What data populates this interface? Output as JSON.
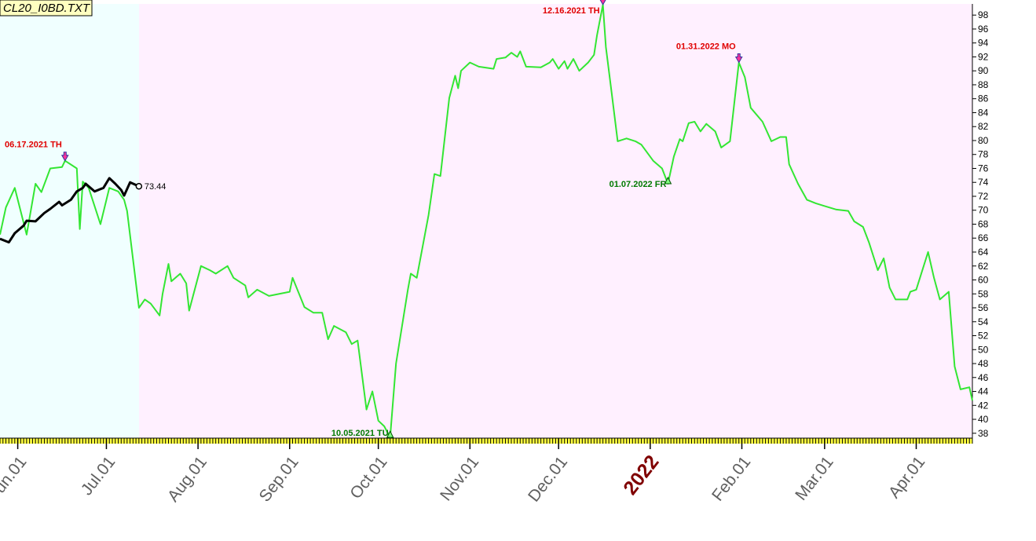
{
  "chart_data": {
    "type": "line",
    "title": "CL20_I0BD.TXT",
    "series": [
      {
        "color": "#33e633",
        "x": [
          "2021-05-26",
          "2021-05-28",
          "2021-05-31",
          "2021-06-04",
          "2021-06-07",
          "2021-06-09",
          "2021-06-12",
          "2021-06-16",
          "2021-06-17",
          "2021-06-21",
          "2021-06-22",
          "2021-06-23",
          "2021-06-25",
          "2021-06-29",
          "2021-07-02",
          "2021-07-05",
          "2021-07-07",
          "2021-07-08",
          "2021-07-12",
          "2021-07-14",
          "2021-07-16",
          "2021-07-19",
          "2021-07-20",
          "2021-07-22",
          "2021-07-23",
          "2021-07-26",
          "2021-07-28",
          "2021-07-29",
          "2021-08-02",
          "2021-08-05",
          "2021-08-07",
          "2021-08-11",
          "2021-08-13",
          "2021-08-17",
          "2021-08-18",
          "2021-08-21",
          "2021-08-25",
          "2021-09-01",
          "2021-09-02",
          "2021-09-06",
          "2021-09-09",
          "2021-09-12",
          "2021-09-14",
          "2021-09-16",
          "2021-09-20",
          "2021-09-22",
          "2021-09-24",
          "2021-09-27",
          "2021-09-29",
          "2021-10-01",
          "2021-10-03",
          "2021-10-05",
          "2021-10-07",
          "2021-10-11",
          "2021-10-12",
          "2021-10-14",
          "2021-10-16",
          "2021-10-18",
          "2021-10-20",
          "2021-10-22",
          "2021-10-25",
          "2021-10-27",
          "2021-10-28",
          "2021-10-29",
          "2021-11-01",
          "2021-11-04",
          "2021-11-09",
          "2021-11-10",
          "2021-11-13",
          "2021-11-15",
          "2021-11-17",
          "2021-11-18",
          "2021-11-20",
          "2021-11-25",
          "2021-11-28",
          "2021-11-29",
          "2021-12-01",
          "2021-12-03",
          "2021-12-04",
          "2021-12-06",
          "2021-12-08",
          "2021-12-11",
          "2021-12-13",
          "2021-12-14",
          "2021-12-16",
          "2021-12-17",
          "2021-12-19",
          "2021-12-21",
          "2021-12-24",
          "2021-12-27",
          "2021-12-29",
          "2022-01-02",
          "2022-01-05",
          "2022-01-07",
          "2022-01-09",
          "2022-01-11",
          "2022-01-12",
          "2022-01-14",
          "2022-01-16",
          "2022-01-18",
          "2022-01-20",
          "2022-01-23",
          "2022-01-25",
          "2022-01-28",
          "2022-01-31",
          "2022-02-02",
          "2022-02-04",
          "2022-02-08",
          "2022-02-11",
          "2022-02-14",
          "2022-02-16",
          "2022-02-17",
          "2022-02-20",
          "2022-02-23",
          "2022-02-26",
          "2022-03-01",
          "2022-03-05",
          "2022-03-09",
          "2022-03-11",
          "2022-03-14",
          "2022-03-16",
          "2022-03-19",
          "2022-03-21",
          "2022-03-23",
          "2022-03-25",
          "2022-03-29",
          "2022-03-30",
          "2022-04-01",
          "2022-04-05",
          "2022-04-07",
          "2022-04-09",
          "2022-04-12",
          "2022-04-14",
          "2022-04-16",
          "2022-04-19",
          "2022-04-20"
        ],
        "values": [
          66.5,
          70.4,
          73.2,
          66.5,
          73.8,
          72.6,
          76,
          76.2,
          77.1,
          76,
          67.3,
          74.1,
          73.2,
          68,
          73.2,
          72.7,
          71.5,
          69.9,
          56,
          57.2,
          56.6,
          54.9,
          58,
          62.3,
          59.8,
          60.9,
          59.5,
          55.6,
          62,
          61.4,
          60.9,
          62,
          60.3,
          59.2,
          57.5,
          58.6,
          57.7,
          58.3,
          60.3,
          56.1,
          55.3,
          55.3,
          51.5,
          53.4,
          52.5,
          50.8,
          51.3,
          41.4,
          44,
          39.8,
          39,
          37.4,
          48,
          58.6,
          60.9,
          60.3,
          64.8,
          69.3,
          75.2,
          74.9,
          86.1,
          89.3,
          87.5,
          90,
          91.2,
          90.6,
          90.3,
          91.7,
          91.9,
          92.6,
          92,
          92.8,
          90.6,
          90.5,
          91.2,
          91.7,
          90.3,
          91.4,
          90.3,
          91.7,
          90,
          91.2,
          92.3,
          95.1,
          99.5,
          93.4,
          86.7,
          79.9,
          80.3,
          79.9,
          79.4,
          77.1,
          76,
          73.8,
          77.7,
          80.2,
          79.9,
          82.5,
          82.7,
          81.3,
          82.4,
          81.3,
          79,
          79.9,
          91.2,
          89.1,
          84.7,
          82.7,
          79.9,
          80.5,
          80.5,
          76.6,
          73.8,
          71.5,
          71,
          70.6,
          70.1,
          69.9,
          68.4,
          67.6,
          65.4,
          61.4,
          63.1,
          58.9,
          57.2,
          57.2,
          58.3,
          58.6,
          64,
          60.3,
          57.2,
          58.3,
          47.6,
          44.3,
          44.6,
          42.7
        ]
      },
      {
        "color": "#000000",
        "x": [
          "2021-05-26",
          "2021-05-29",
          "2021-05-31",
          "2021-06-03",
          "2021-06-04",
          "2021-06-07",
          "2021-06-10",
          "2021-06-12",
          "2021-06-15",
          "2021-06-16",
          "2021-06-19",
          "2021-06-21",
          "2021-06-23",
          "2021-06-24",
          "2021-06-27",
          "2021-06-30",
          "2021-07-02",
          "2021-07-04",
          "2021-07-06",
          "2021-07-07",
          "2021-07-09",
          "2021-07-12"
        ],
        "values": [
          65.9,
          65.4,
          66.7,
          67.8,
          68.5,
          68.4,
          69.6,
          70.2,
          71.2,
          70.7,
          71.5,
          72.7,
          73.2,
          73.8,
          72.7,
          73.2,
          74.6,
          73.8,
          72.9,
          72.1,
          74,
          73.44
        ]
      }
    ],
    "annotations": [
      {
        "text": "06.17.2021 TH",
        "x": "2021-06-17",
        "value": 77.1,
        "kind": "high",
        "color": "#e00000"
      },
      {
        "text": "10.05.2021 TU",
        "x": "2021-10-05",
        "value": 37.4,
        "kind": "low",
        "color": "#007a00"
      },
      {
        "text": "12.16.2021 TH",
        "x": "2021-12-16",
        "value": 99.5,
        "kind": "high",
        "color": "#e00000"
      },
      {
        "text": "01.07.2022 FR",
        "x": "2022-01-07",
        "value": 73.8,
        "kind": "low",
        "color": "#007a00"
      },
      {
        "text": "01.31.2022 MO",
        "x": "2022-01-31",
        "value": 91.2,
        "kind": "high",
        "color": "#e00000"
      }
    ],
    "xlim": [
      "2021-05-26",
      "2022-04-20"
    ],
    "xticks": [
      {
        "value": "2021-06-01",
        "label": "Jun.01"
      },
      {
        "value": "2021-07-01",
        "label": "Jul.01"
      },
      {
        "value": "2021-08-01",
        "label": "Aug.01"
      },
      {
        "value": "2021-09-01",
        "label": "Sep.01"
      },
      {
        "value": "2021-10-01",
        "label": "Oct.01"
      },
      {
        "value": "2021-11-01",
        "label": "Nov.01"
      },
      {
        "value": "2021-12-01",
        "label": "Dec.01"
      },
      {
        "value": "2022-01-01",
        "label": "2022"
      },
      {
        "value": "2022-02-01",
        "label": "Feb.01"
      },
      {
        "value": "2022-03-01",
        "label": "Mar.01"
      },
      {
        "value": "2022-04-01",
        "label": "Apr.01"
      }
    ],
    "ylim": [
      37.3,
      99.6
    ],
    "yticks": [
      38,
      40,
      42,
      44,
      46,
      48,
      50,
      52,
      54,
      56,
      58,
      60,
      62,
      64,
      66,
      68,
      70,
      72,
      74,
      76,
      78,
      80,
      82,
      84,
      86,
      88,
      90,
      92,
      94,
      96,
      98
    ],
    "y_axis_side": "right",
    "grid": false
  }
}
